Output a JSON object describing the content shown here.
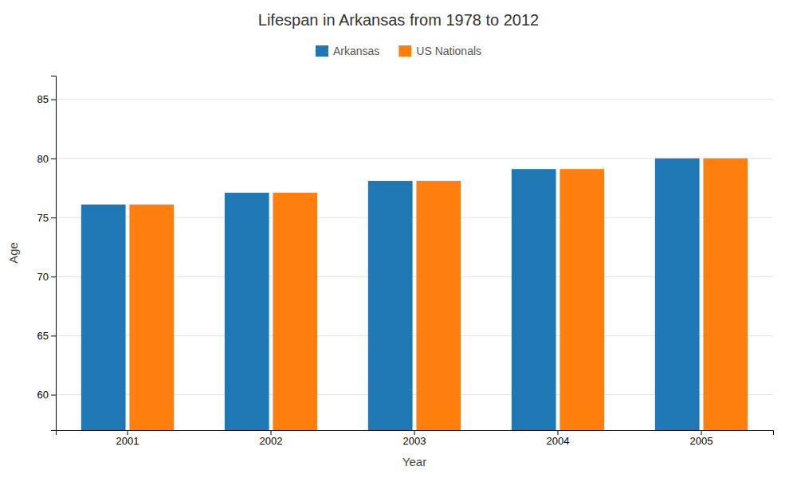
{
  "chart_data": {
    "type": "bar",
    "title": "Lifespan in Arkansas from 1978 to 2012",
    "x_label": "Year",
    "y_label": "Age",
    "categories": [
      "2001",
      "2002",
      "2003",
      "2004",
      "2005"
    ],
    "series": [
      {
        "name": "Arkansas",
        "values": [
          76.1,
          77.1,
          78.1,
          79.1,
          80.0
        ]
      },
      {
        "name": "US Nationals",
        "values": [
          76.1,
          77.1,
          78.1,
          79.1,
          80.0
        ]
      }
    ],
    "ylim": [
      57,
      87
    ],
    "yticks": [
      60,
      65,
      70,
      75,
      80,
      85
    ],
    "grid": true,
    "legend": "top"
  }
}
